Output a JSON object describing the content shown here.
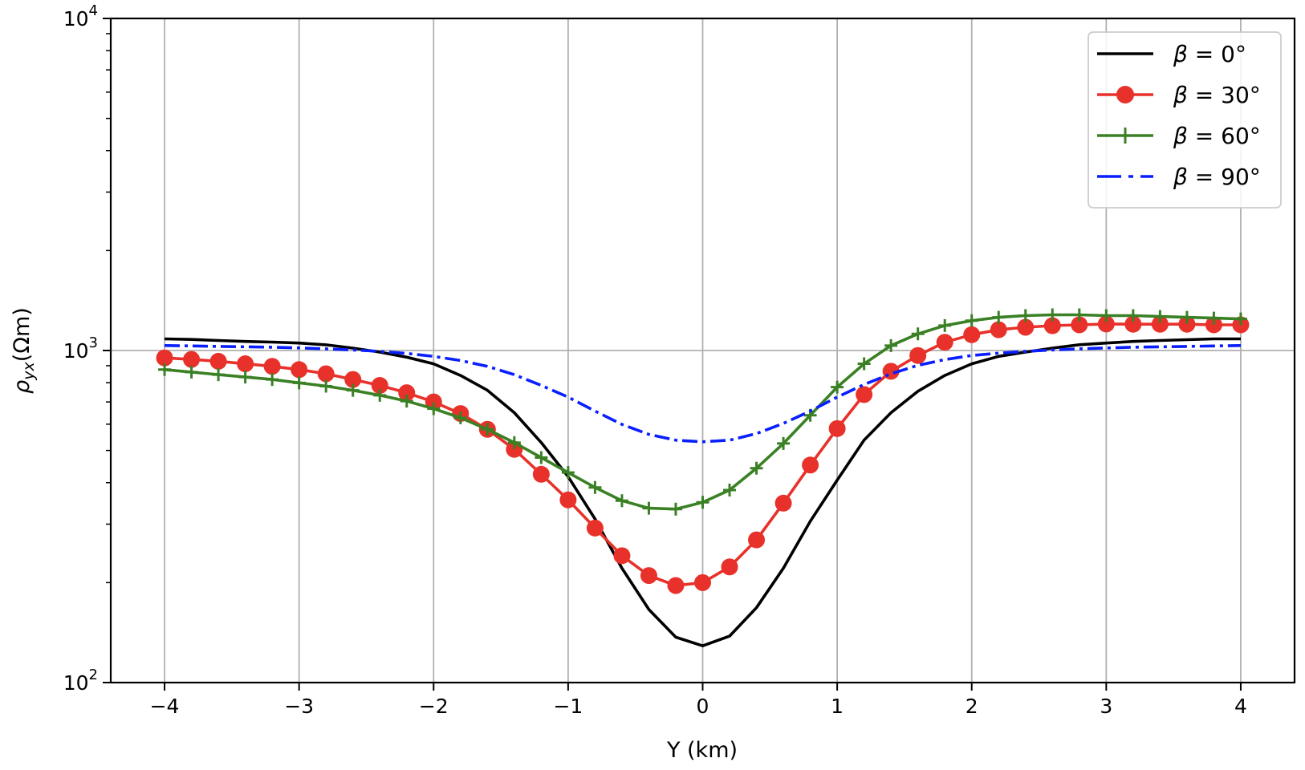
{
  "chart_data": {
    "type": "line",
    "title": "",
    "xlabel": "Y (km)",
    "ylabel": {
      "symbol": "ρ",
      "subscript": "yx",
      "unit": "(Ωm)"
    },
    "xlim": [
      -4.4,
      4.4
    ],
    "ylim": [
      100,
      10000
    ],
    "yscale": "log",
    "grid": true,
    "legend_position": "top-right",
    "xticks": [
      -4,
      -3,
      -2,
      -1,
      0,
      1,
      2,
      3,
      4
    ],
    "xtick_labels": [
      "−4",
      "−3",
      "−2",
      "−1",
      "0",
      "1",
      "2",
      "3",
      "4"
    ],
    "yticks": [
      100,
      1000,
      10000
    ],
    "ytick_labels": [
      {
        "base": "10",
        "exp": "2"
      },
      {
        "base": "10",
        "exp": "3"
      },
      {
        "base": "10",
        "exp": "4"
      }
    ],
    "x": [
      -4.0,
      -3.8,
      -3.6,
      -3.4,
      -3.2,
      -3.0,
      -2.8,
      -2.6,
      -2.4,
      -2.2,
      -2.0,
      -1.8,
      -1.6,
      -1.4,
      -1.2,
      -1.0,
      -0.8,
      -0.6,
      -0.4,
      -0.2,
      0.0,
      0.2,
      0.4,
      0.6,
      0.8,
      1.0,
      1.2,
      1.4,
      1.6,
      1.8,
      2.0,
      2.2,
      2.4,
      2.6,
      2.8,
      3.0,
      3.2,
      3.4,
      3.6,
      3.8,
      4.0
    ],
    "series": [
      {
        "name": "β = 0°",
        "color": "#000000",
        "style": "solid",
        "marker": "none",
        "values": [
          1084,
          1080,
          1072,
          1065,
          1060,
          1053,
          1040,
          1017,
          989,
          955,
          912,
          841,
          759,
          650,
          528,
          417,
          311,
          221,
          166,
          137,
          129,
          138,
          168,
          221,
          306,
          407,
          537,
          650,
          754,
          841,
          912,
          960,
          989,
          1017,
          1041,
          1053,
          1065,
          1072,
          1078,
          1084,
          1084
        ]
      },
      {
        "name": "β = 30°",
        "color": "#e8312a",
        "style": "solid",
        "marker": "circle",
        "values": [
          950,
          940,
          928,
          912,
          896,
          876,
          851,
          818,
          785,
          746,
          700,
          646,
          579,
          504,
          424,
          355,
          292,
          241,
          210,
          196,
          200,
          223,
          269,
          347,
          452,
          582,
          737,
          866,
          966,
          1059,
          1116,
          1155,
          1175,
          1188,
          1195,
          1202,
          1200,
          1200,
          1200,
          1195,
          1195
        ]
      },
      {
        "name": "β = 60°",
        "color": "#3a8024",
        "style": "solid",
        "marker": "plus",
        "values": [
          876,
          861,
          846,
          832,
          818,
          799,
          781,
          759,
          733,
          704,
          668,
          627,
          579,
          528,
          476,
          429,
          387,
          353,
          335,
          333,
          349,
          380,
          442,
          525,
          638,
          776,
          912,
          1035,
          1122,
          1189,
          1230,
          1259,
          1274,
          1281,
          1281,
          1274,
          1274,
          1266,
          1259,
          1252,
          1245
        ]
      },
      {
        "name": "β = 90°",
        "color": "#0a1fff",
        "style": "dashdot",
        "marker": "none",
        "values": [
          1035,
          1032,
          1029,
          1026,
          1023,
          1018,
          1012,
          1004,
          994,
          980,
          960,
          933,
          896,
          846,
          785,
          724,
          657,
          599,
          559,
          537,
          531,
          537,
          562,
          603,
          657,
          724,
          790,
          851,
          902,
          939,
          966,
          982,
          994,
          1004,
          1012,
          1018,
          1023,
          1026,
          1029,
          1032,
          1035
        ]
      }
    ]
  }
}
